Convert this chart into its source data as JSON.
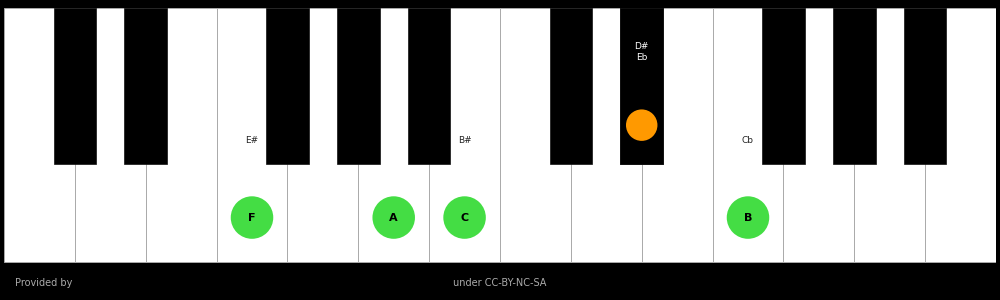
{
  "background_color": "#000000",
  "white_key_color": "#ffffff",
  "black_key_color": "#000000",
  "white_key_border": "#aaaaaa",
  "num_white_keys": 14,
  "footer_text_left": "Provided by",
  "footer_text_right": "under CC-BY-NC-SA",
  "footer_color": "#aaaaaa",
  "highlighted_white": [
    {
      "index": 3,
      "label": "F",
      "sublabel": "E#",
      "color": "#44dd44"
    },
    {
      "index": 5,
      "label": "A",
      "sublabel": "",
      "color": "#44dd44"
    },
    {
      "index": 6,
      "label": "C",
      "sublabel": "B#",
      "color": "#44dd44"
    },
    {
      "index": 10,
      "label": "B",
      "sublabel": "Cb",
      "color": "#44dd44"
    }
  ],
  "highlighted_black": [
    {
      "bk_index": 6,
      "label": "Eb",
      "sublabel": "D#",
      "color": "#ff9900"
    }
  ]
}
